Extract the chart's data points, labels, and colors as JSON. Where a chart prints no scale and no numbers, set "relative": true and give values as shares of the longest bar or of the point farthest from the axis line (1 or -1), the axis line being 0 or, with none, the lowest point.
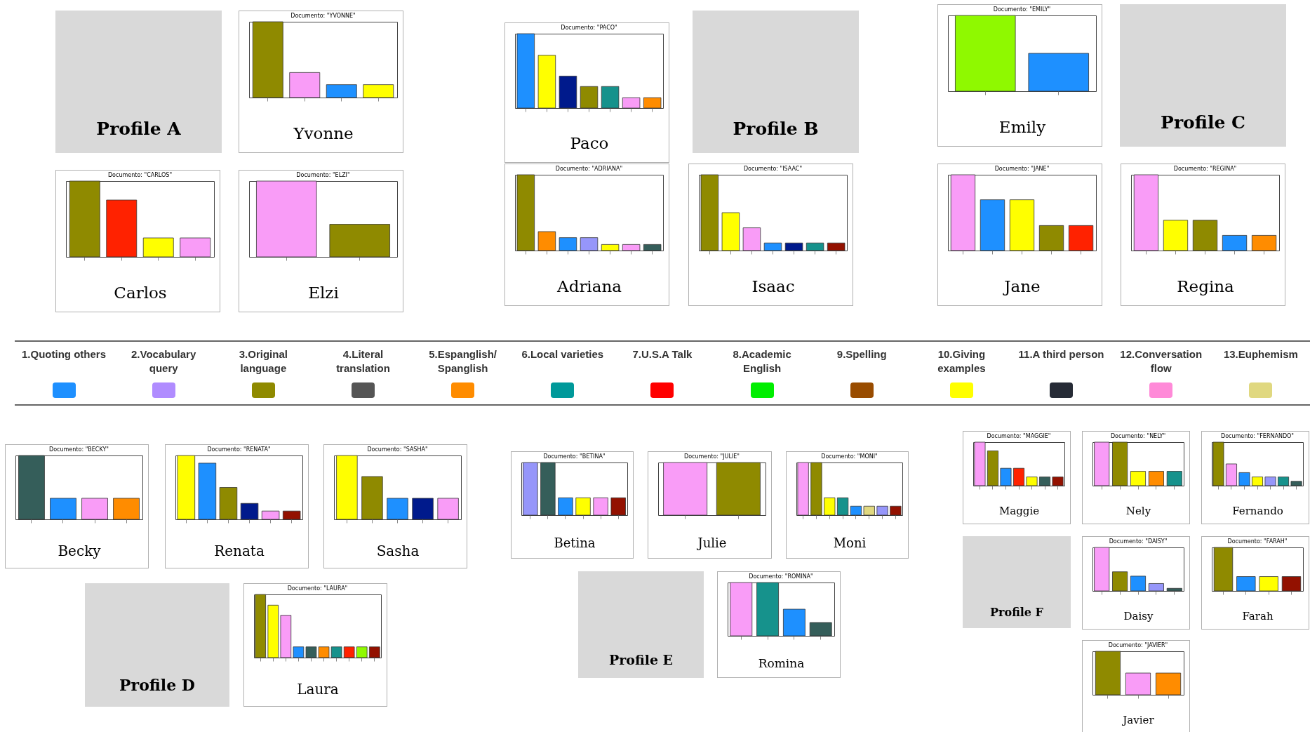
{
  "chart_data": [
    {
      "type": "other",
      "title": "Profile A"
    },
    {
      "type": "bar",
      "relative": true,
      "tick_labels": false,
      "title": "Documento: \"YVONNE\"",
      "xlabel": "Yvonne",
      "categories": [
        null,
        null,
        null,
        null
      ],
      "values": [
        1,
        0.33,
        0.17,
        0.17
      ],
      "colors": [
        "#8f8a00",
        "#f99cf7",
        "#1e90ff",
        "#ffff00"
      ]
    },
    {
      "type": "bar",
      "relative": true,
      "tick_labels": false,
      "title": "Documento: \"CARLOS\"",
      "xlabel": "Carlos",
      "categories": [
        null,
        null,
        null,
        null
      ],
      "values": [
        1,
        0.75,
        0.25,
        0.25
      ],
      "colors": [
        "#8f8a00",
        "#ff2200",
        "#ffff00",
        "#f99cf7"
      ]
    },
    {
      "type": "bar",
      "relative": true,
      "tick_labels": false,
      "title": "Documento: \"ELZI\"",
      "xlabel": "Elzi",
      "categories": [
        null,
        null
      ],
      "values": [
        1,
        0.43
      ],
      "colors": [
        "#f99cf7",
        "#8f8a00"
      ]
    },
    {
      "type": "bar",
      "relative": true,
      "tick_labels": false,
      "title": "Documento: \"PACO\"",
      "xlabel": "Paco",
      "categories": [
        null,
        null,
        null,
        null,
        null,
        null,
        null
      ],
      "values": [
        1,
        0.71,
        0.43,
        0.29,
        0.29,
        0.14,
        0.14
      ],
      "colors": [
        "#1e90ff",
        "#ffff00",
        "#001a8c",
        "#8f8a00",
        "#16928c",
        "#f99cf7",
        "#ff8c00"
      ]
    },
    {
      "type": "other",
      "title": "Profile B"
    },
    {
      "type": "bar",
      "relative": true,
      "tick_labels": false,
      "title": "Documento: \"ADRIANA\"",
      "xlabel": "Adriana",
      "categories": [
        null,
        null,
        null,
        null,
        null,
        null,
        null
      ],
      "values": [
        1,
        0.25,
        0.17,
        0.17,
        0.08,
        0.08,
        0.08
      ],
      "colors": [
        "#8f8a00",
        "#ff8c00",
        "#1e90ff",
        "#9696fa",
        "#ffff00",
        "#f99cf7",
        "#355e5a"
      ]
    },
    {
      "type": "bar",
      "relative": true,
      "tick_labels": false,
      "title": "Documento: \"ISAAC\"",
      "xlabel": "Isaac",
      "categories": [
        null,
        null,
        null,
        null,
        null,
        null,
        null
      ],
      "values": [
        1,
        0.5,
        0.3,
        0.1,
        0.1,
        0.1,
        0.1
      ],
      "colors": [
        "#8f8a00",
        "#ffff00",
        "#f99cf7",
        "#1e90ff",
        "#001a8c",
        "#16928c",
        "#931100"
      ]
    },
    {
      "type": "bar",
      "relative": true,
      "tick_labels": false,
      "title": "Documento: \"EMILY\"",
      "xlabel": "Emily",
      "categories": [
        null,
        null
      ],
      "values": [
        1,
        0.5
      ],
      "colors": [
        "#8ff900",
        "#1e90ff"
      ]
    },
    {
      "type": "other",
      "title": "Profile C"
    },
    {
      "type": "bar",
      "relative": true,
      "tick_labels": false,
      "title": "Documento: \"JANE\"",
      "xlabel": "Jane",
      "categories": [
        null,
        null,
        null,
        null,
        null
      ],
      "values": [
        1,
        0.67,
        0.67,
        0.33,
        0.33
      ],
      "colors": [
        "#f99cf7",
        "#1e90ff",
        "#ffff00",
        "#8f8a00",
        "#ff2200"
      ]
    },
    {
      "type": "bar",
      "relative": true,
      "tick_labels": false,
      "title": "Documento: \"REGINA\"",
      "xlabel": "Regina",
      "categories": [
        null,
        null,
        null,
        null,
        null
      ],
      "values": [
        1,
        0.4,
        0.4,
        0.2,
        0.2
      ],
      "colors": [
        "#f99cf7",
        "#ffff00",
        "#8f8a00",
        "#1e90ff",
        "#ff8c00"
      ]
    },
    {
      "type": "other",
      "categories": [
        "1.Quoting others",
        "2.Vocabulary query",
        "3.Original language",
        "4.Literal translation",
        "5.Espanglish/ Spanglish",
        "6.Local varieties",
        "7.U.S.A Talk",
        "8.Academic English",
        "9.Spelling",
        "10.Giving examples",
        "11.A third person",
        "12.Conversation flow",
        "13.Euphemism"
      ],
      "colors": [
        "#1e90ff",
        "#b08cff",
        "#8f8a00",
        "#555555",
        "#ff8c00",
        "#00999a",
        "#ff0000",
        "#00ee00",
        "#994c00",
        "#ffff00",
        "#262b36",
        "#ff8ad8",
        "#e0d880"
      ]
    },
    {
      "type": "bar",
      "relative": true,
      "tick_labels": false,
      "title": "Documento: \"BECKY\"",
      "xlabel": "Becky",
      "categories": [
        null,
        null,
        null,
        null
      ],
      "values": [
        1,
        0.33,
        0.33,
        0.33
      ],
      "colors": [
        "#355e5a",
        "#1e90ff",
        "#f99cf7",
        "#ff8c00"
      ]
    },
    {
      "type": "bar",
      "relative": true,
      "tick_labels": false,
      "title": "Documento: \"RENATA\"",
      "xlabel": "Renata",
      "categories": [
        null,
        null,
        null,
        null,
        null,
        null
      ],
      "values": [
        1,
        0.88,
        0.5,
        0.25,
        0.13,
        0.13
      ],
      "colors": [
        "#ffff00",
        "#1e90ff",
        "#8f8a00",
        "#001a8c",
        "#f99cf7",
        "#931100"
      ]
    },
    {
      "type": "bar",
      "relative": true,
      "tick_labels": false,
      "title": "Documento: \"SASHA\"",
      "xlabel": "Sasha",
      "categories": [
        null,
        null,
        null,
        null,
        null
      ],
      "values": [
        1,
        0.67,
        0.33,
        0.33,
        0.33
      ],
      "colors": [
        "#ffff00",
        "#8f8a00",
        "#1e90ff",
        "#001a8c",
        "#f99cf7"
      ]
    },
    {
      "type": "other",
      "title": "Profile D"
    },
    {
      "type": "bar",
      "relative": true,
      "tick_labels": false,
      "title": "Documento: \"LAURA\"",
      "xlabel": "Laura",
      "categories": [
        null,
        null,
        null,
        null,
        null,
        null,
        null,
        null,
        null,
        null
      ],
      "values": [
        1,
        0.83,
        0.67,
        0.17,
        0.17,
        0.17,
        0.17,
        0.17,
        0.17,
        0.17
      ],
      "colors": [
        "#8f8a00",
        "#ffff00",
        "#f99cf7",
        "#1e90ff",
        "#355e5a",
        "#ff8c00",
        "#16928c",
        "#ff2200",
        "#8ff900",
        "#931100"
      ]
    },
    {
      "type": "bar",
      "relative": true,
      "tick_labels": false,
      "title": "Documento: \"BETINA\"",
      "xlabel": "Betina",
      "categories": [
        null,
        null,
        null,
        null,
        null,
        null
      ],
      "values": [
        1,
        1,
        0.33,
        0.33,
        0.33,
        0.33
      ],
      "colors": [
        "#9696fa",
        "#355e5a",
        "#1e90ff",
        "#ffff00",
        "#f99cf7",
        "#931100"
      ]
    },
    {
      "type": "bar",
      "relative": true,
      "tick_labels": false,
      "title": "Documento: \"JULIE\"",
      "xlabel": "Julie",
      "categories": [
        null,
        null
      ],
      "values": [
        1,
        1
      ],
      "colors": [
        "#f99cf7",
        "#8f8a00"
      ]
    },
    {
      "type": "bar",
      "relative": true,
      "tick_labels": false,
      "title": "Documento: \"MONI\"",
      "xlabel": "Moni",
      "categories": [
        null,
        null,
        null,
        null,
        null,
        null,
        null,
        null
      ],
      "values": [
        1,
        1,
        0.33,
        0.33,
        0.17,
        0.17,
        0.17,
        0.17
      ],
      "colors": [
        "#f99cf7",
        "#8f8a00",
        "#ffff00",
        "#16928c",
        "#1e90ff",
        "#e0d880",
        "#9696fa",
        "#931100"
      ]
    },
    {
      "type": "other",
      "title": "Profile E"
    },
    {
      "type": "bar",
      "relative": true,
      "tick_labels": false,
      "title": "Documento: \"ROMINA\"",
      "xlabel": "Romina",
      "categories": [
        null,
        null,
        null,
        null
      ],
      "values": [
        1,
        1,
        0.5,
        0.25
      ],
      "colors": [
        "#f99cf7",
        "#16928c",
        "#1e90ff",
        "#355e5a"
      ]
    },
    {
      "type": "bar",
      "relative": true,
      "tick_labels": false,
      "title": "Documento: \"MAGGIE\"",
      "xlabel": "Maggie",
      "categories": [
        null,
        null,
        null,
        null,
        null,
        null,
        null
      ],
      "values": [
        1,
        0.8,
        0.4,
        0.4,
        0.2,
        0.2,
        0.2
      ],
      "colors": [
        "#f99cf7",
        "#8f8a00",
        "#1e90ff",
        "#ff2200",
        "#ffff00",
        "#355e5a",
        "#931100"
      ]
    },
    {
      "type": "bar",
      "relative": true,
      "tick_labels": false,
      "title": "Documento: \"NELY\"",
      "xlabel": "Nely",
      "categories": [
        null,
        null,
        null,
        null,
        null
      ],
      "values": [
        1,
        1,
        0.33,
        0.33,
        0.33
      ],
      "colors": [
        "#f99cf7",
        "#8f8a00",
        "#ffff00",
        "#ff8c00",
        "#16928c"
      ]
    },
    {
      "type": "bar",
      "relative": true,
      "tick_labels": false,
      "title": "Documento: \"FERNANDO\"",
      "xlabel": "Fernando",
      "categories": [
        null,
        null,
        null,
        null,
        null,
        null,
        null
      ],
      "values": [
        1,
        0.5,
        0.3,
        0.2,
        0.2,
        0.2,
        0.1
      ],
      "colors": [
        "#8f8a00",
        "#f99cf7",
        "#1e90ff",
        "#ffff00",
        "#9696fa",
        "#16928c",
        "#355e5a"
      ]
    },
    {
      "type": "other",
      "title": "Profile F"
    },
    {
      "type": "bar",
      "relative": true,
      "tick_labels": false,
      "title": "Documento: \"DAISY\"",
      "xlabel": "Daisy",
      "categories": [
        null,
        null,
        null,
        null,
        null
      ],
      "values": [
        1,
        0.44,
        0.34,
        0.17,
        0.06
      ],
      "colors": [
        "#f99cf7",
        "#8f8a00",
        "#1e90ff",
        "#9696fa",
        "#355e5a"
      ]
    },
    {
      "type": "bar",
      "relative": true,
      "tick_labels": false,
      "title": "Documento: \"FARAH\"",
      "xlabel": "Farah",
      "categories": [
        null,
        null,
        null,
        null
      ],
      "values": [
        1,
        0.33,
        0.33,
        0.33
      ],
      "colors": [
        "#8f8a00",
        "#1e90ff",
        "#ffff00",
        "#931100"
      ]
    },
    {
      "type": "bar",
      "relative": true,
      "tick_labels": false,
      "title": "Documento: \"JAVIER\"",
      "xlabel": "Javier",
      "categories": [
        null,
        null,
        null
      ],
      "values": [
        1,
        0.5,
        0.5
      ],
      "colors": [
        "#8f8a00",
        "#f99cf7",
        "#ff8c00"
      ]
    }
  ]
}
